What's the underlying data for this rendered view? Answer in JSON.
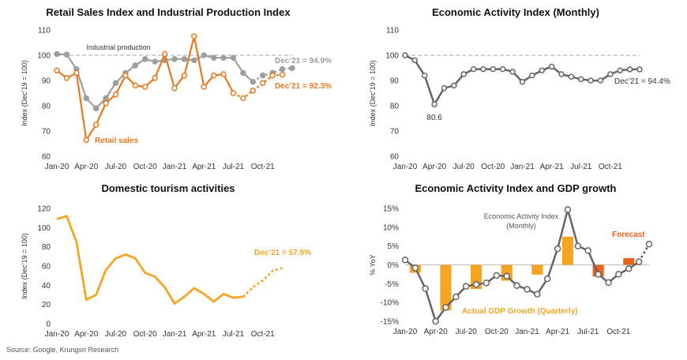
{
  "source": "Source: Google, Krungsri Research",
  "colors": {
    "orange": "#E9781E",
    "gray": "#9E9E9E",
    "darkgray": "#6B6363",
    "yellow": "#F4A623",
    "dashline": "#8FAFC8",
    "bar_actual": "#F4A623",
    "bar_forecast": "#E8651E"
  },
  "chart_data": [
    {
      "id": "c1",
      "type": "line",
      "title": "Retail Sales Index and Industrial Production Index",
      "ylabel": "Index (Dec’19 = 100)",
      "ylim": [
        60,
        110
      ],
      "yticks": [
        60,
        70,
        80,
        90,
        100,
        110
      ],
      "x_ticks": [
        "Jan-20",
        "Apr-20",
        "Jul-20",
        "Oct-20",
        "Jan-21",
        "Apr-21",
        "Jul-21",
        "Oct-21"
      ],
      "ref_line": 100,
      "series": [
        {
          "name": "Industrial production",
          "color": "#9E9E9E",
          "values": [
            100.5,
            100.3,
            94.5,
            83,
            79,
            83,
            89,
            93,
            96,
            98.5,
            97.5,
            98,
            98.5,
            98.5,
            98,
            100,
            99,
            99,
            99,
            93,
            89.5,
            92,
            93,
            94.5,
            94.9
          ],
          "forecast_from": 20
        },
        {
          "name": "Retail sales",
          "color": "#E9781E",
          "values": [
            94,
            91,
            93,
            66.5,
            72.5,
            81,
            84.5,
            92,
            88,
            87.5,
            91,
            100.5,
            87,
            92,
            107.5,
            87.5,
            92,
            92.5,
            85,
            83,
            86,
            89,
            92,
            92.3
          ],
          "forecast_from": 18
        }
      ],
      "annotations": {
        "ip_label": "Industrial production",
        "rs_label": "Retail sales",
        "end_ip": "Dec’21 = 94.9%",
        "end_rs": "Dec’21 = 92.3%"
      }
    },
    {
      "id": "c2",
      "type": "line",
      "title": "Economic Activity Index (Monthly)",
      "ylabel": "Index (Dec’19 = 100)",
      "ylim": [
        60,
        110
      ],
      "yticks": [
        60,
        70,
        80,
        90,
        100,
        110
      ],
      "x_ticks": [
        "Jan-20",
        "Apr-20",
        "Jul-20",
        "Oct-20",
        "Jan-21",
        "Apr-21",
        "Jul-21",
        "Oct-21"
      ],
      "ref_line": 100,
      "series": [
        {
          "name": "Economic Activity Index",
          "color": "#6B6363",
          "values": [
            100,
            98,
            92,
            80.6,
            87,
            88,
            92.5,
            94.5,
            94.5,
            94.5,
            94.5,
            93.5,
            89.5,
            92,
            94,
            95.5,
            92.5,
            91.5,
            90.5,
            90,
            90,
            92.5,
            94,
            94.4,
            94.4
          ]
        }
      ],
      "annotations": {
        "min_label": "80.6",
        "end_label": "Dec’21 = 94.4%"
      }
    },
    {
      "id": "c3",
      "type": "line",
      "title": "Domestic tourism activities",
      "ylabel": "Index (Dec’19 = 100)",
      "ylim": [
        0,
        120
      ],
      "yticks": [
        0,
        20,
        40,
        60,
        80,
        100,
        120
      ],
      "x_ticks": [
        "Jan-20",
        "Apr-20",
        "Jul-20",
        "Oct-20",
        "Jan-21",
        "Apr-21",
        "Jul-21",
        "Oct-21"
      ],
      "series": [
        {
          "name": "Domestic tourism",
          "color": "#F4A623",
          "values": [
            109,
            112,
            85,
            25,
            30,
            56,
            68,
            72,
            68,
            53,
            49,
            38,
            21,
            28,
            37,
            31,
            23,
            31,
            27,
            28,
            38,
            45,
            55,
            57.9
          ],
          "forecast_from": 19
        }
      ],
      "annotations": {
        "end_label": "Dec’21 = 57.9%"
      }
    },
    {
      "id": "c4",
      "type": "bar+line",
      "title": "Economic Activity Index and GDP growth",
      "ylabel": "% YoY",
      "ylim": [
        -15,
        15
      ],
      "yticks": [
        -15,
        -10,
        -5,
        0,
        5,
        10,
        15
      ],
      "ytick_labels": [
        "-15%",
        "-10%",
        "-5%",
        "0%",
        "5%",
        "10%",
        "15%"
      ],
      "x_ticks": [
        "Jan-20",
        "Apr-20",
        "Jul-20",
        "Oct-20",
        "Jan-21",
        "Apr-21",
        "Jul-21",
        "Oct-21"
      ],
      "bars": [
        {
          "month_index": 1,
          "value": -2.1,
          "kind": "actual"
        },
        {
          "month_index": 4,
          "value": -12.1,
          "kind": "actual"
        },
        {
          "month_index": 7,
          "value": -6.4,
          "kind": "actual"
        },
        {
          "month_index": 10,
          "value": -4.2,
          "kind": "actual"
        },
        {
          "month_index": 13,
          "value": -2.6,
          "kind": "actual"
        },
        {
          "month_index": 16,
          "value": 7.5,
          "kind": "actual"
        },
        {
          "month_index": 19,
          "value": -3.1,
          "kind": "forecast"
        },
        {
          "month_index": 22,
          "value": 1.8,
          "kind": "forecast"
        }
      ],
      "series": [
        {
          "name": "Economic Activity Index (Monthly)",
          "color": "#6B6363",
          "values": [
            1.3,
            -0.8,
            -6.3,
            -15,
            -11.3,
            -8.5,
            -5.7,
            -5.2,
            -4.8,
            -2.8,
            -3,
            -5.5,
            -6.5,
            -7.8,
            -3.7,
            4.3,
            14.7,
            5,
            3.8,
            -2.5,
            -4.7,
            -2.5,
            -1,
            0.8,
            5.5
          ],
          "forecast_from": 23
        }
      ],
      "annotations": {
        "eai_label_1": "Economic Activity Index",
        "eai_label_2": "(Monthly)",
        "gdp_label": "Actual GDP Growth (Quarterly)",
        "forecast_label": "Forecast"
      }
    }
  ]
}
